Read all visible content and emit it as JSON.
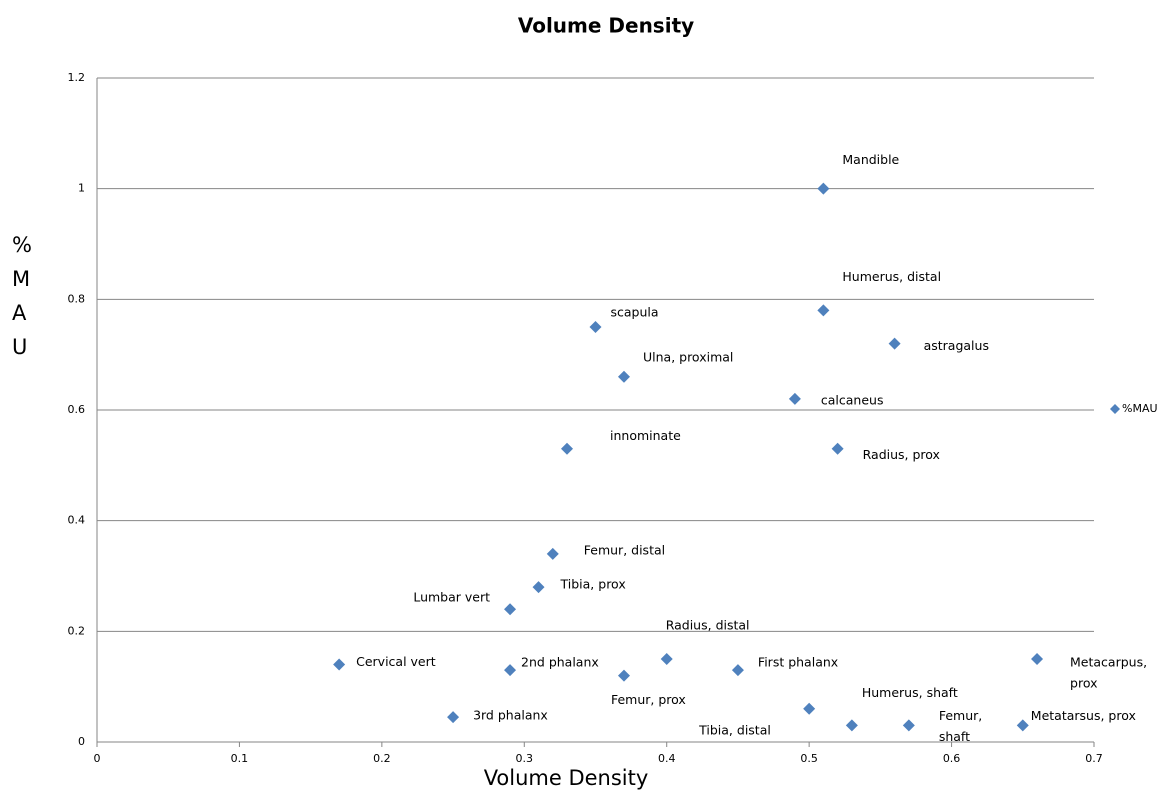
{
  "chart_data": {
    "type": "scatter",
    "title": "Volume Density",
    "x_label": "Volume Density",
    "y_label": "%MAU",
    "series": [
      {
        "name": "%MAU",
        "color": "#4f81bd",
        "x": [
          0.51,
          0.51,
          0.35,
          0.56,
          0.37,
          0.49,
          0.33,
          0.52,
          0.32,
          0.31,
          0.29,
          0.17,
          0.29,
          0.37,
          0.4,
          0.45,
          0.66,
          0.25,
          0.5,
          0.53,
          0.57,
          0.65
        ],
        "values": [
          1.0,
          0.78,
          0.75,
          0.72,
          0.66,
          0.62,
          0.53,
          0.53,
          0.34,
          0.28,
          0.24,
          0.14,
          0.13,
          0.12,
          0.15,
          0.13,
          0.15,
          0.045,
          0.06,
          0.03,
          0.03,
          0.03
        ]
      }
    ],
    "point_labels": [
      [
        "Mandible"
      ],
      [
        "Humerus, distal"
      ],
      [
        "scapula"
      ],
      [
        "astragalus"
      ],
      [
        "Ulna, proximal"
      ],
      [
        "calcaneus"
      ],
      [
        "innominate"
      ],
      [
        "Radius, prox"
      ],
      [
        "Femur, distal"
      ],
      [
        "Tibia, prox"
      ],
      [
        "Lumbar vert"
      ],
      [
        "Cervical vert"
      ],
      [
        "2nd phalanx"
      ],
      [
        "Femur, prox"
      ],
      [
        "Radius, distal"
      ],
      [
        "First phalanx"
      ],
      [
        "Metacarpus,",
        "prox"
      ],
      [
        "3rd phalanx"
      ],
      [
        "Tibia, distal"
      ],
      [
        "Humerus, shaft"
      ],
      [
        "Femur,",
        "shaft"
      ],
      [
        "Metatarsus, prox"
      ]
    ],
    "xlim": [
      0,
      0.7
    ],
    "xticks": [
      0,
      0.1,
      0.2,
      0.3,
      0.4,
      0.5,
      0.6,
      0.7
    ],
    "ylim": [
      0,
      1.2
    ],
    "yticks": [
      0,
      0.2,
      0.4,
      0.6,
      0.8,
      1,
      1.2
    ],
    "grid": true,
    "legend": "right"
  }
}
